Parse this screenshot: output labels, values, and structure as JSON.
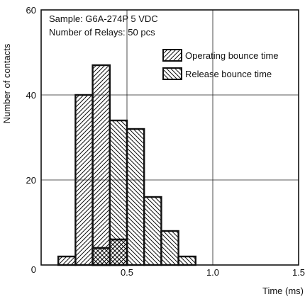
{
  "chart_data": {
    "type": "bar",
    "title": "",
    "xlabel": "Time (ms)",
    "ylabel": "Number of contacts",
    "xlim": [
      0,
      1.5
    ],
    "ylim": [
      0,
      60
    ],
    "xticks": [
      "0.5",
      "1.0",
      "1.5"
    ],
    "yticks": [
      "0",
      "20",
      "40",
      "60"
    ],
    "grid": true,
    "annotations": [
      "Sample: G6A-274P 5 VDC",
      "Number of Relays: 50 pcs"
    ],
    "legend_position": "top-right",
    "bin_width_ms": 0.1,
    "series": [
      {
        "name": "Operating bounce time",
        "pattern": "diagonal-up",
        "bins": [
          {
            "x": [
              0.1,
              0.2
            ],
            "value": 2
          },
          {
            "x": [
              0.2,
              0.3
            ],
            "value": 40
          },
          {
            "x": [
              0.3,
              0.4
            ],
            "value": 47
          },
          {
            "x": [
              0.4,
              0.5
            ],
            "value": 6
          }
        ]
      },
      {
        "name": "Release bounce time",
        "pattern": "diagonal-down",
        "bins": [
          {
            "x": [
              0.3,
              0.4
            ],
            "value": 4
          },
          {
            "x": [
              0.4,
              0.5
            ],
            "value": 34
          },
          {
            "x": [
              0.5,
              0.6
            ],
            "value": 32
          },
          {
            "x": [
              0.6,
              0.7
            ],
            "value": 16
          },
          {
            "x": [
              0.7,
              0.8
            ],
            "value": 8
          },
          {
            "x": [
              0.8,
              0.9
            ],
            "value": 2
          }
        ]
      }
    ]
  },
  "colors": {
    "line": "#111111",
    "grid": "#222222",
    "background": "#ffffff"
  }
}
